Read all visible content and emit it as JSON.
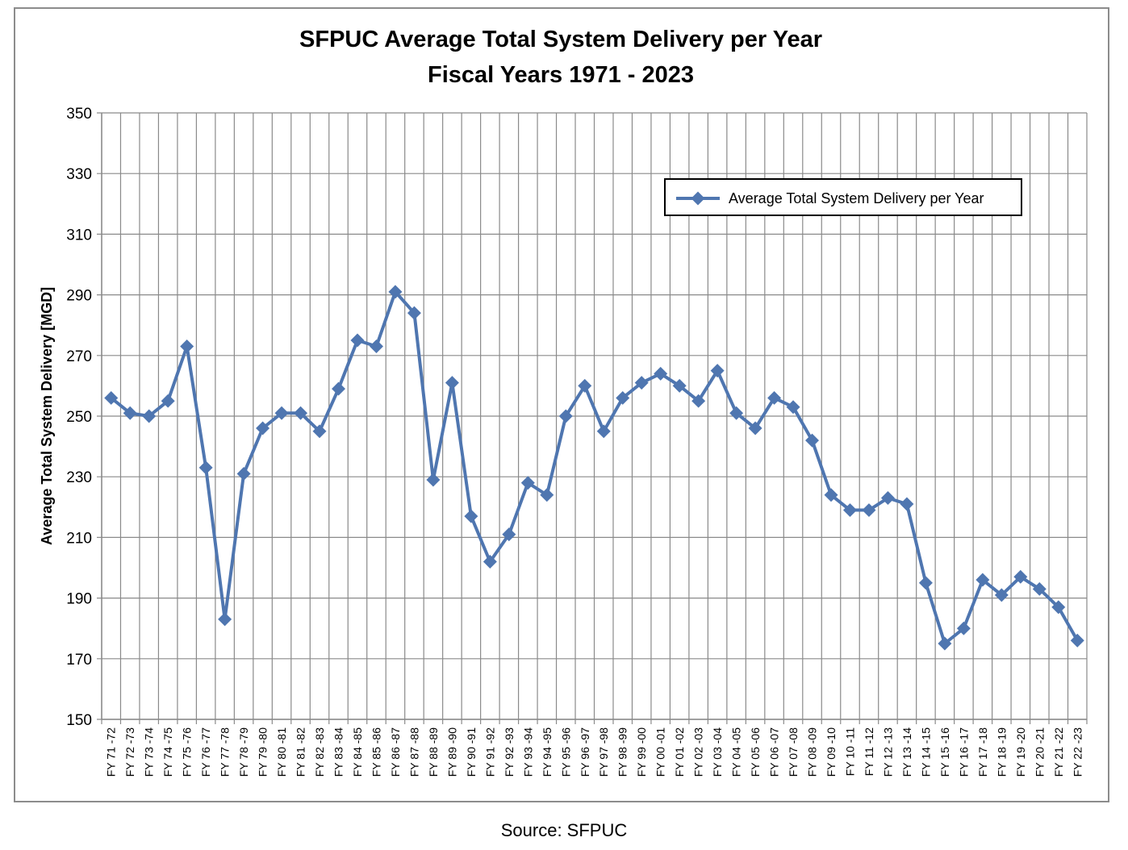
{
  "chart_data": {
    "type": "line",
    "title": [
      "SFPUC Average Total System Delivery per Year",
      "Fiscal Years 1971 - 2023"
    ],
    "xlabel": "",
    "ylabel": "Average Total System Delivery [MGD]",
    "ylim": [
      150,
      350
    ],
    "yticks": [
      150,
      170,
      190,
      210,
      230,
      250,
      270,
      290,
      310,
      330,
      350
    ],
    "grid": true,
    "legend_position": "top-right",
    "categories": [
      "FY 71 -72",
      "FY 72 -73",
      "FY 73 -74",
      "FY 74 -75",
      "FY 75 -76",
      "FY 76 -77",
      "FY 77 -78",
      "FY 78 -79",
      "FY 79 -80",
      "FY 80 -81",
      "FY 81 -82",
      "FY 82 -83",
      "FY 83 -84",
      "FY 84 -85",
      "FY 85 -86",
      "FY 86 -87",
      "FY 87 -88",
      "FY 88 -89",
      "FY 89 -90",
      "FY 90 -91",
      "FY 91 -92",
      "FY 92 -93",
      "FY 93 -94",
      "FY 94 -95",
      "FY 95 -96",
      "FY 96 -97",
      "FY 97 -98",
      "FY 98 -99",
      "FY 99 -00",
      "FY 00 -01",
      "FY 01 -02",
      "FY 02 -03",
      "FY 03 -04",
      "FY 04 -05",
      "FY 05 -06",
      "FY 06 -07",
      "FY 07 -08",
      "FY 08 -09",
      "FY 09 -10",
      "FY 10 -11",
      "FY 11 -12",
      "FY 12 -13",
      "FY 13 -14",
      "FY 14 -15",
      "FY 15 -16",
      "FY 16 -17",
      "FY 17 -18",
      "FY 18 -19",
      "FY 19 -20",
      "FY 20 -21",
      "FY 21 -22",
      "FY 22 -23"
    ],
    "series": [
      {
        "name": "Average Total System Delivery per Year",
        "color": "#4f76b0",
        "values": [
          256,
          251,
          250,
          255,
          273,
          233,
          183,
          231,
          246,
          251,
          251,
          245,
          259,
          275,
          273,
          291,
          284,
          229,
          261,
          217,
          202,
          211,
          228,
          224,
          250,
          260,
          245,
          256,
          261,
          264,
          260,
          255,
          265,
          251,
          246,
          256,
          253,
          242,
          224,
          219,
          219,
          223,
          221,
          195,
          175,
          180,
          196,
          191,
          197,
          193,
          187,
          176
        ]
      }
    ]
  },
  "source": "Source: SFPUC"
}
